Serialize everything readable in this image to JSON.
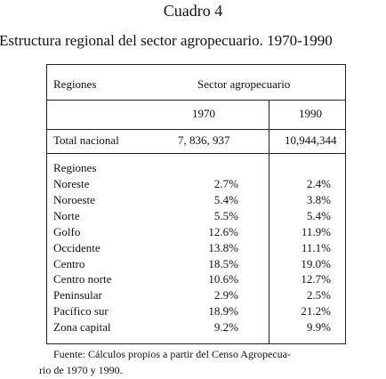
{
  "header": {
    "title": "Cuadro 4",
    "subtitle": "Estructura regional del sector agropecuario. 1970-1990"
  },
  "table": {
    "columns": [
      "Regiones",
      "Sector agropecuario"
    ],
    "years": [
      "1970",
      "1990"
    ],
    "total": [
      "Total nacional",
      "7, 836, 937",
      "10,944,344"
    ],
    "section_label": "Regiones",
    "rows": [
      [
        "Noreste",
        "2.7%",
        "2.4%"
      ],
      [
        "Noroeste",
        "5.4%",
        "3.8%"
      ],
      [
        "Norte",
        "5.5%",
        "5.4%"
      ],
      [
        "Golfo",
        "12.6%",
        "11.9%"
      ],
      [
        "Occidente",
        "13.8%",
        "11.1%"
      ],
      [
        "Centro",
        "18.5%",
        "19.0%"
      ],
      [
        "Centro norte",
        "10.6%",
        "12.7%"
      ],
      [
        "Peninsular",
        "2.9%",
        "2.5%"
      ],
      [
        "Pacífico sur",
        "18.9%",
        "21.2%"
      ],
      [
        "Zona capital",
        "9.2%",
        "9.9%"
      ]
    ]
  },
  "footnote": [
    "Fuente: Cálculos propios a partir del Censo Agropecua-",
    "rio de 1970 y 1990."
  ]
}
